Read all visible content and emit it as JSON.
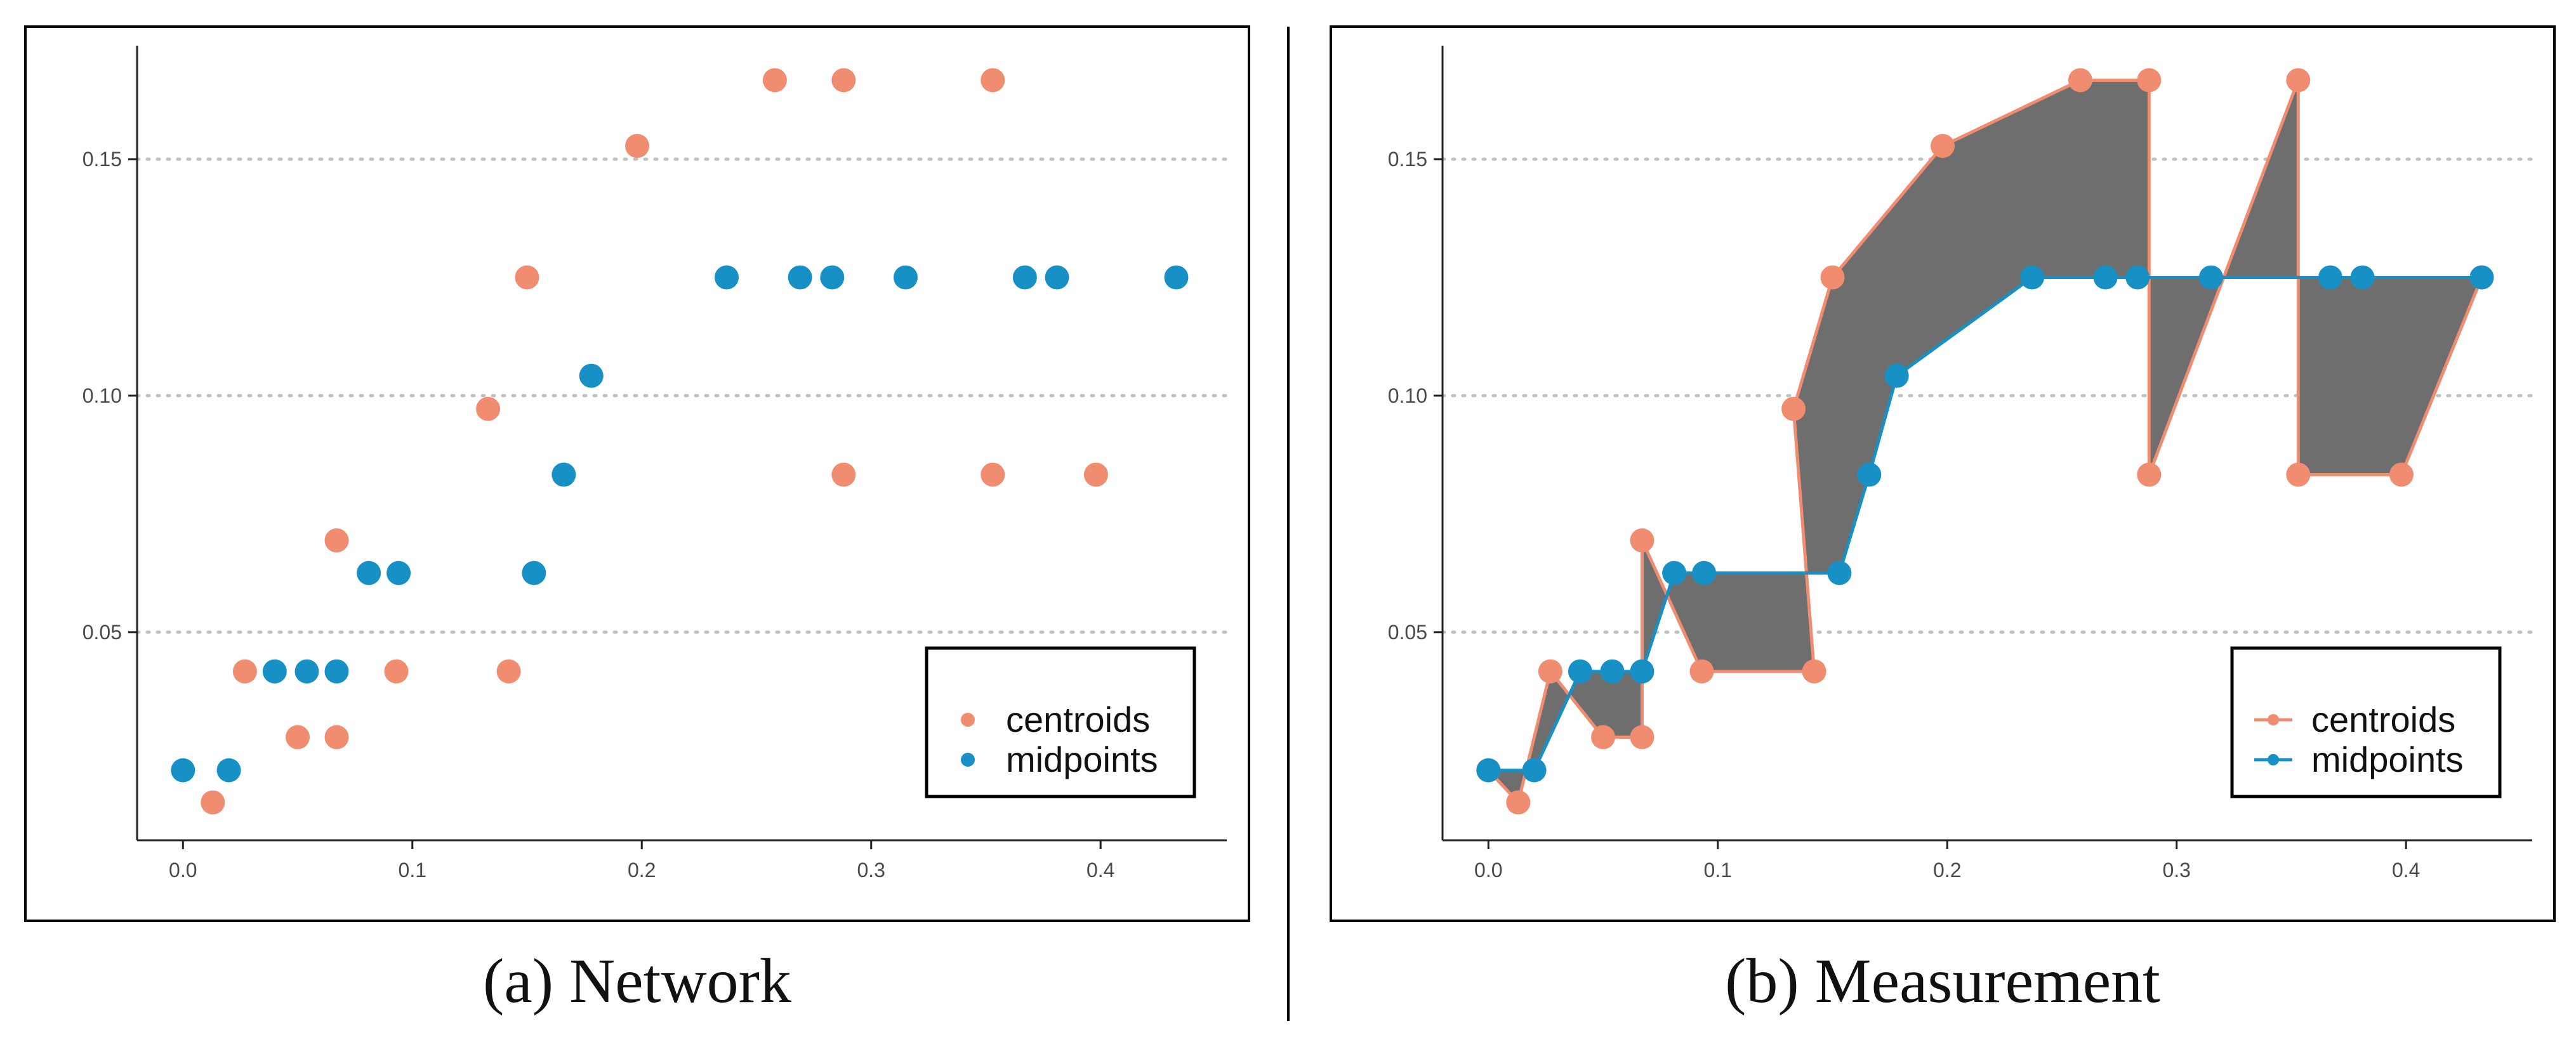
{
  "colors": {
    "centroids": "#F08C70",
    "midpoints": "#1790C6",
    "fill": "#6E6E6E",
    "grid": "#C0C0C0",
    "frame": "#000000",
    "axis": "#222222"
  },
  "legend": {
    "centroids_label": "centroids",
    "midpoints_label": "midpoints"
  },
  "chart_data": [
    {
      "type": "scatter",
      "caption": "(a) Network",
      "title": "",
      "xlabel": "",
      "ylabel": "",
      "xlim": [
        -0.02,
        0.455
      ],
      "ylim": [
        0.006,
        0.174
      ],
      "x_ticks": [
        0.0,
        0.1,
        0.2,
        0.3,
        0.4
      ],
      "x_tick_labels": [
        "0.0",
        "0.1",
        "0.2",
        "0.3",
        "0.4"
      ],
      "y_ticks": [
        0.05,
        0.1,
        0.15
      ],
      "y_tick_labels": [
        "0.05",
        "0.10",
        "0.15"
      ],
      "grid": "horizontal dotted",
      "legend_position": "bottom-right",
      "series": [
        {
          "name": "centroids",
          "x": [
            0.013,
            0.027,
            0.05,
            0.067,
            0.067,
            0.093,
            0.133,
            0.142,
            0.15,
            0.198,
            0.258,
            0.288,
            0.288,
            0.353,
            0.353,
            0.398
          ],
          "y": [
            0.014,
            0.0417,
            0.0278,
            0.0278,
            0.0694,
            0.0417,
            0.0972,
            0.0417,
            0.125,
            0.1528,
            0.1667,
            0.1667,
            0.0833,
            0.1667,
            0.0833,
            0.0833
          ]
        },
        {
          "name": "midpoints",
          "x": [
            0.0,
            0.02,
            0.04,
            0.054,
            0.067,
            0.081,
            0.094,
            0.153,
            0.166,
            0.178,
            0.237,
            0.269,
            0.283,
            0.315,
            0.367,
            0.381,
            0.433
          ],
          "y": [
            0.0208,
            0.0208,
            0.0417,
            0.0417,
            0.0417,
            0.0625,
            0.0625,
            0.0625,
            0.0833,
            0.1042,
            0.125,
            0.125,
            0.125,
            0.125,
            0.125,
            0.125,
            0.125
          ]
        }
      ]
    },
    {
      "type": "line",
      "caption": "(b) Measurement",
      "title": "",
      "xlabel": "",
      "ylabel": "",
      "xlim": [
        -0.02,
        0.455
      ],
      "ylim": [
        0.006,
        0.174
      ],
      "x_ticks": [
        0.0,
        0.1,
        0.2,
        0.3,
        0.4
      ],
      "x_tick_labels": [
        "0.0",
        "0.1",
        "0.2",
        "0.3",
        "0.4"
      ],
      "y_ticks": [
        0.05,
        0.1,
        0.15
      ],
      "y_tick_labels": [
        "0.05",
        "0.10",
        "0.15"
      ],
      "grid": "horizontal dotted",
      "legend_position": "bottom-right",
      "shaded_area_between_series": true,
      "series": [
        {
          "name": "centroids",
          "x": [
            0.0,
            0.013,
            0.027,
            0.05,
            0.067,
            0.067,
            0.093,
            0.142,
            0.133,
            0.15,
            0.198,
            0.258,
            0.288,
            0.288,
            0.353,
            0.353,
            0.398,
            0.433
          ],
          "y": [
            0.0208,
            0.014,
            0.0417,
            0.0278,
            0.0278,
            0.0694,
            0.0417,
            0.0417,
            0.0972,
            0.125,
            0.1528,
            0.1667,
            0.1667,
            0.0833,
            0.1667,
            0.0833,
            0.0833,
            0.125
          ]
        },
        {
          "name": "midpoints",
          "x": [
            0.0,
            0.02,
            0.04,
            0.054,
            0.067,
            0.081,
            0.094,
            0.153,
            0.166,
            0.178,
            0.237,
            0.269,
            0.283,
            0.315,
            0.367,
            0.381,
            0.433
          ],
          "y": [
            0.0208,
            0.0208,
            0.0417,
            0.0417,
            0.0417,
            0.0625,
            0.0625,
            0.0625,
            0.0833,
            0.1042,
            0.125,
            0.125,
            0.125,
            0.125,
            0.125,
            0.125,
            0.125
          ]
        }
      ]
    }
  ]
}
